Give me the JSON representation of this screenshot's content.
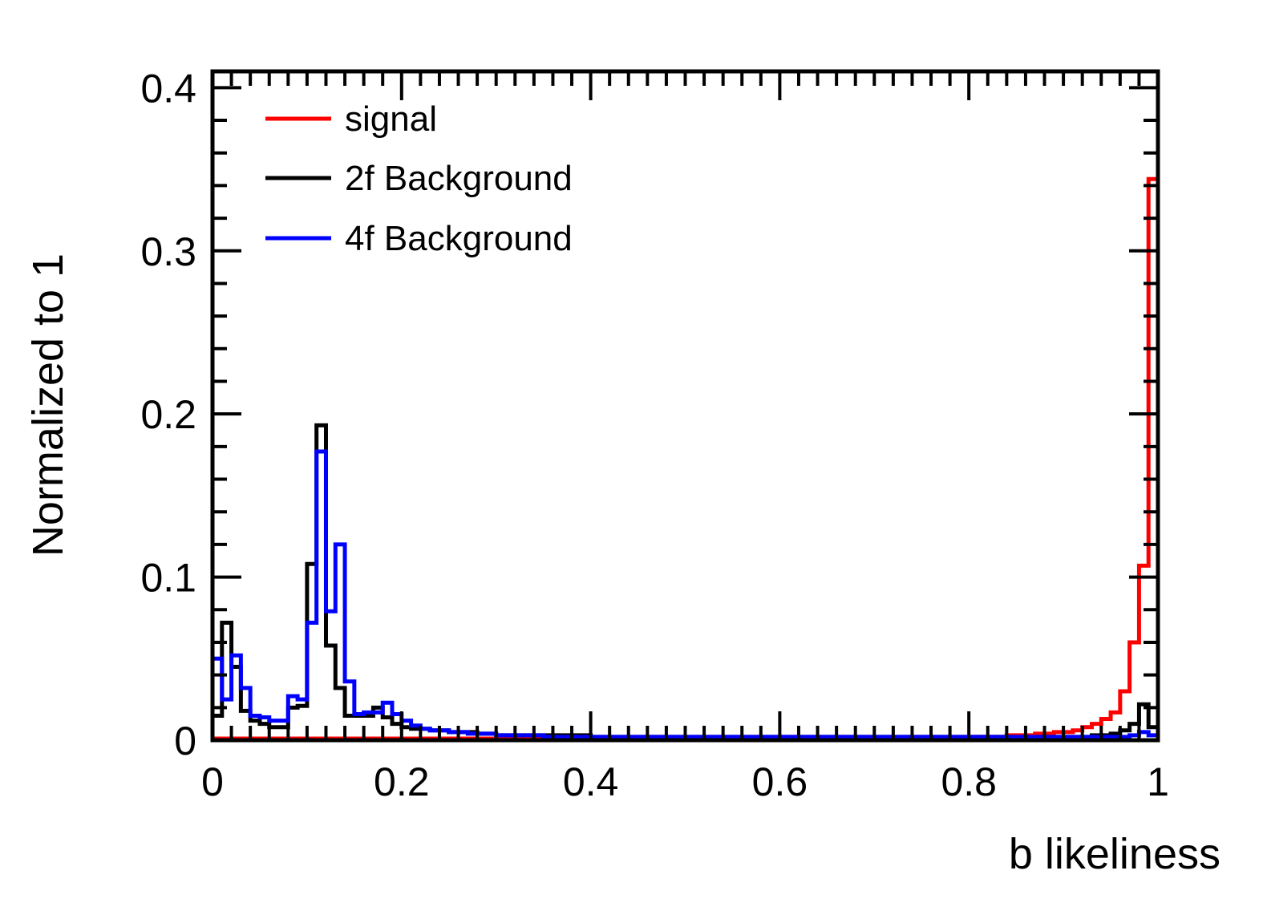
{
  "chart_data": {
    "type": "line",
    "style": "step-histogram",
    "xlabel": "b likeliness",
    "ylabel": "Normalized to 1",
    "xlim": [
      0,
      1
    ],
    "ylim": [
      0,
      0.41
    ],
    "x_ticks": [
      0,
      0.2,
      0.4,
      0.6,
      0.8,
      1
    ],
    "x_tick_labels": [
      "0",
      "0.2",
      "0.4",
      "0.6",
      "0.8",
      "1"
    ],
    "y_ticks": [
      0,
      0.1,
      0.2,
      0.3,
      0.4
    ],
    "y_tick_labels": [
      "0",
      "0.1",
      "0.2",
      "0.3",
      "0.4"
    ],
    "legend_position": "top-left",
    "grid": false,
    "bin_width": 0.01,
    "series": [
      {
        "name": "signal",
        "color": "#ff0000",
        "values": [
          0.001,
          0.001,
          0.001,
          0.001,
          0.001,
          0.001,
          0.001,
          0.001,
          0.001,
          0.001,
          0.001,
          0.001,
          0.001,
          0.001,
          0.001,
          0.001,
          0.001,
          0.001,
          0.001,
          0.001,
          0.001,
          0.001,
          0.001,
          0.001,
          0.001,
          0.001,
          0.001,
          0.001,
          0.001,
          0.001,
          0.001,
          0.001,
          0.001,
          0.001,
          0.001,
          0.001,
          0.001,
          0.001,
          0.001,
          0.001,
          0.001,
          0.001,
          0.001,
          0.001,
          0.001,
          0.001,
          0.001,
          0.001,
          0.001,
          0.001,
          0.001,
          0.001,
          0.001,
          0.001,
          0.001,
          0.001,
          0.001,
          0.001,
          0.001,
          0.001,
          0.001,
          0.001,
          0.001,
          0.001,
          0.001,
          0.001,
          0.001,
          0.001,
          0.001,
          0.001,
          0.001,
          0.001,
          0.001,
          0.001,
          0.001,
          0.001,
          0.001,
          0.001,
          0.001,
          0.001,
          0.002,
          0.002,
          0.002,
          0.002,
          0.003,
          0.003,
          0.003,
          0.004,
          0.004,
          0.005,
          0.005,
          0.006,
          0.008,
          0.01,
          0.013,
          0.017,
          0.03,
          0.06,
          0.107,
          0.344
        ]
      },
      {
        "name": "2f Background",
        "color": "#000000",
        "values": [
          0.015,
          0.072,
          0.045,
          0.018,
          0.012,
          0.01,
          0.008,
          0.008,
          0.02,
          0.021,
          0.108,
          0.193,
          0.058,
          0.032,
          0.015,
          0.015,
          0.015,
          0.02,
          0.014,
          0.01,
          0.008,
          0.007,
          0.007,
          0.006,
          0.006,
          0.005,
          0.005,
          0.005,
          0.004,
          0.004,
          0.003,
          0.003,
          0.003,
          0.003,
          0.003,
          0.003,
          0.003,
          0.003,
          0.003,
          0.003,
          0.002,
          0.002,
          0.002,
          0.002,
          0.002,
          0.002,
          0.002,
          0.002,
          0.002,
          0.002,
          0.002,
          0.002,
          0.002,
          0.002,
          0.002,
          0.002,
          0.002,
          0.002,
          0.002,
          0.002,
          0.002,
          0.002,
          0.002,
          0.002,
          0.002,
          0.002,
          0.002,
          0.002,
          0.002,
          0.002,
          0.002,
          0.002,
          0.002,
          0.002,
          0.002,
          0.002,
          0.002,
          0.002,
          0.002,
          0.002,
          0.002,
          0.002,
          0.002,
          0.002,
          0.002,
          0.002,
          0.002,
          0.002,
          0.002,
          0.002,
          0.002,
          0.002,
          0.002,
          0.003,
          0.003,
          0.004,
          0.006,
          0.01,
          0.022,
          0.008
        ]
      },
      {
        "name": "4f Background",
        "color": "#0000ff",
        "values": [
          0.05,
          0.025,
          0.052,
          0.032,
          0.015,
          0.014,
          0.012,
          0.012,
          0.027,
          0.025,
          0.072,
          0.177,
          0.079,
          0.12,
          0.036,
          0.016,
          0.017,
          0.017,
          0.023,
          0.016,
          0.012,
          0.009,
          0.007,
          0.006,
          0.006,
          0.005,
          0.005,
          0.004,
          0.004,
          0.004,
          0.003,
          0.003,
          0.003,
          0.003,
          0.003,
          0.002,
          0.002,
          0.002,
          0.002,
          0.002,
          0.002,
          0.002,
          0.002,
          0.002,
          0.002,
          0.002,
          0.002,
          0.002,
          0.002,
          0.002,
          0.002,
          0.002,
          0.002,
          0.002,
          0.002,
          0.002,
          0.002,
          0.002,
          0.002,
          0.002,
          0.002,
          0.002,
          0.002,
          0.002,
          0.002,
          0.002,
          0.002,
          0.002,
          0.002,
          0.002,
          0.002,
          0.002,
          0.002,
          0.002,
          0.002,
          0.002,
          0.002,
          0.002,
          0.002,
          0.002,
          0.002,
          0.002,
          0.002,
          0.002,
          0.002,
          0.002,
          0.002,
          0.002,
          0.002,
          0.002,
          0.002,
          0.002,
          0.002,
          0.002,
          0.002,
          0.002,
          0.002,
          0.003,
          0.005,
          0.003
        ]
      }
    ]
  }
}
